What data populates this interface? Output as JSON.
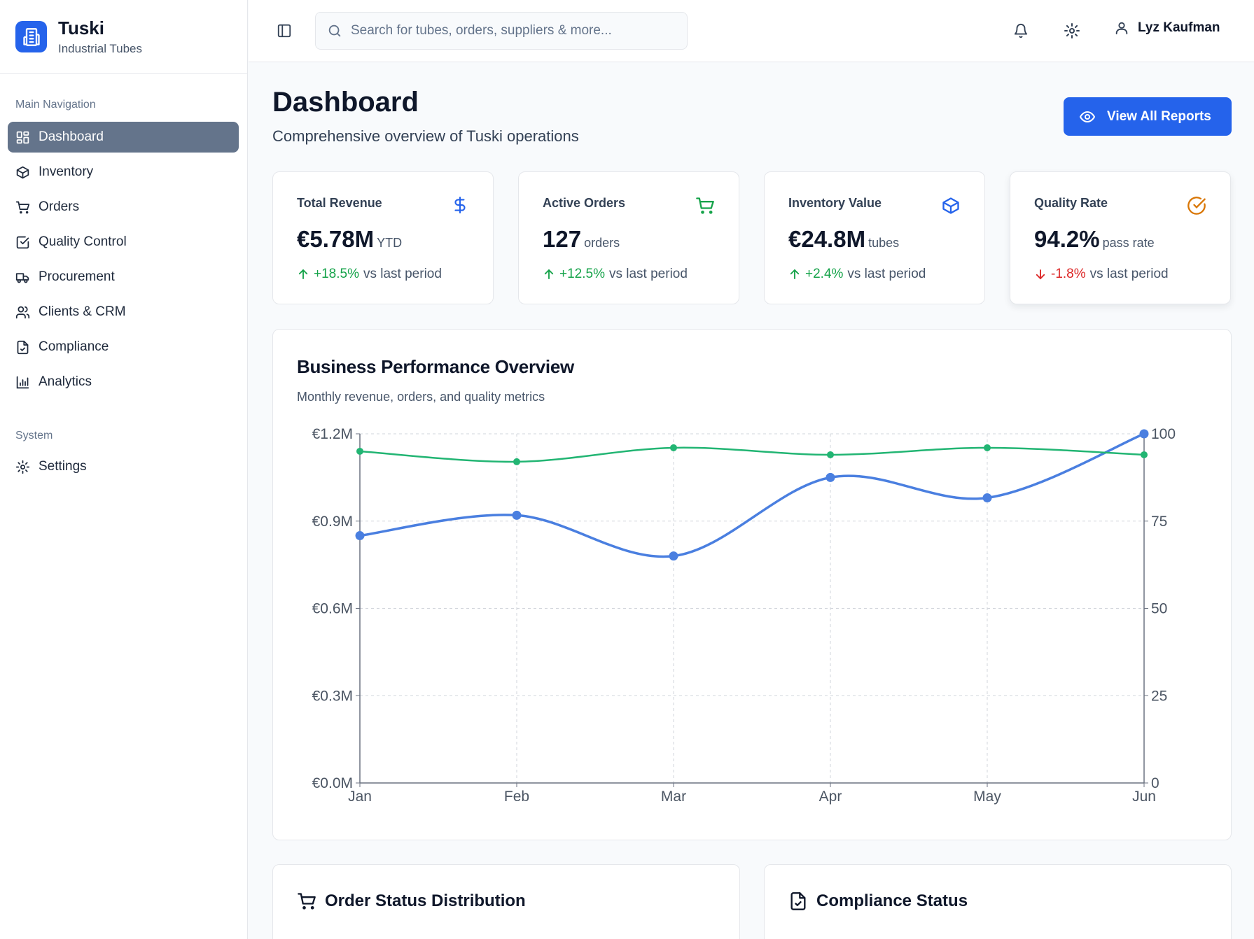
{
  "brand": {
    "title": "Tuski",
    "subtitle": "Industrial Tubes"
  },
  "sidebar": {
    "main_section": "Main Navigation",
    "items": [
      {
        "label": "Dashboard",
        "icon": "grid-icon",
        "active": true
      },
      {
        "label": "Inventory",
        "icon": "package-icon"
      },
      {
        "label": "Orders",
        "icon": "cart-icon"
      },
      {
        "label": "Quality Control",
        "icon": "check-square-icon"
      },
      {
        "label": "Procurement",
        "icon": "truck-icon"
      },
      {
        "label": "Clients & CRM",
        "icon": "users-icon"
      },
      {
        "label": "Compliance",
        "icon": "file-check-icon"
      },
      {
        "label": "Analytics",
        "icon": "bar-chart-icon"
      }
    ],
    "system_section": "System",
    "system_items": [
      {
        "label": "Settings",
        "icon": "gear-icon"
      }
    ]
  },
  "header": {
    "search_placeholder": "Search for tubes, orders, suppliers & more...",
    "user_name": "Lyz Kaufman"
  },
  "page": {
    "title": "Dashboard",
    "subtitle": "Comprehensive overview of Tuski operations",
    "reports_button": "View All Reports"
  },
  "stats": [
    {
      "label": "Total Revenue",
      "value": "€5.78M",
      "unit": "YTD",
      "delta": "+18.5%",
      "trend": "up",
      "suffix": "vs last period",
      "icon": "dollar-icon",
      "icon_color": "#2563eb"
    },
    {
      "label": "Active Orders",
      "value": "127",
      "unit": "orders",
      "delta": "+12.5%",
      "trend": "up",
      "suffix": "vs last period",
      "icon": "cart-icon",
      "icon_color": "#16a34a"
    },
    {
      "label": "Inventory Value",
      "value": "€24.8M",
      "unit": "tubes",
      "delta": "+2.4%",
      "trend": "up",
      "suffix": "vs last period",
      "icon": "package-icon",
      "icon_color": "#2563eb"
    },
    {
      "label": "Quality Rate",
      "value": "94.2%",
      "unit": "pass rate",
      "delta": "-1.8%",
      "trend": "down",
      "suffix": "vs last period",
      "icon": "check-circle-icon",
      "icon_color": "#d97706"
    }
  ],
  "chart": {
    "title": "Business Performance Overview",
    "subtitle": "Monthly revenue, orders, and quality metrics"
  },
  "chart_data": {
    "type": "line",
    "categories": [
      "Jan",
      "Feb",
      "Mar",
      "Apr",
      "May",
      "Jun"
    ],
    "y_left": {
      "ticks": [
        "€0.0M",
        "€0.3M",
        "€0.6M",
        "€0.9M",
        "€1.2M"
      ],
      "range": [
        0,
        1.2
      ]
    },
    "y_right": {
      "ticks": [
        "0",
        "25",
        "50",
        "75",
        "100"
      ],
      "range": [
        0,
        100
      ]
    },
    "series": [
      {
        "axis": "left",
        "color": "#4a7fe0",
        "values": [
          0.85,
          0.92,
          0.78,
          1.05,
          0.98,
          1.2
        ]
      },
      {
        "axis": "right",
        "color": "#22b573",
        "values": [
          95,
          92,
          96,
          94,
          96,
          94
        ]
      }
    ],
    "grid": true
  },
  "bottom": {
    "order_status_title": "Order Status Distribution",
    "compliance_title": "Compliance Status"
  }
}
